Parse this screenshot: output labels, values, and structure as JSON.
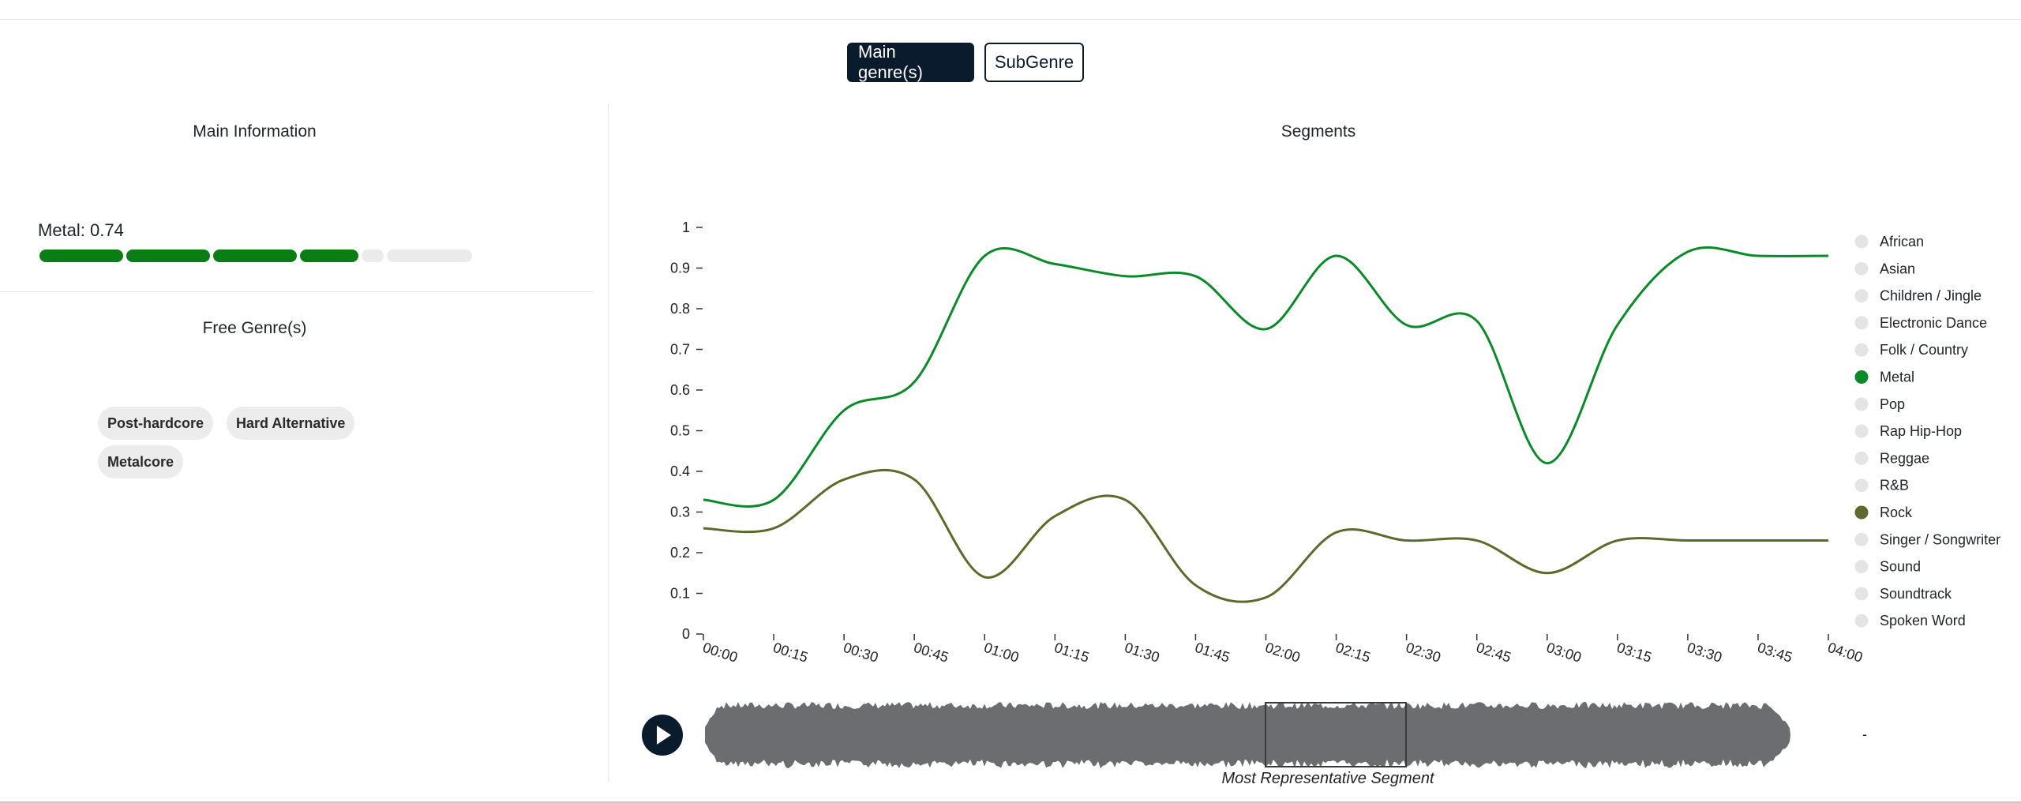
{
  "toggle": {
    "main_label": "Main genre(s)",
    "sub_label": "SubGenre",
    "active": "main"
  },
  "main_info": {
    "title": "Main Information",
    "metal_label": "Metal: 0.74",
    "metal_score": 0.74
  },
  "free_genres": {
    "title": "Free Genre(s)",
    "tags": [
      "Post-hardcore",
      "Hard Alternative",
      "Metalcore"
    ]
  },
  "segments": {
    "title": "Segments",
    "caption": "Most Representative Segment",
    "duration_marker": "-"
  },
  "colors": {
    "metal": "#0b8a2a",
    "rock": "#5b6b2c",
    "inactive": "#e4e4e4",
    "waveform": "#6b6d70",
    "bar_fill": "#0a7d14",
    "dark": "#0b1b2e"
  },
  "icons": {
    "play": "play-icon"
  },
  "chart_data": {
    "type": "line",
    "title": "Segments",
    "xlabel": "",
    "ylabel": "",
    "x": [
      "00:00",
      "00:15",
      "00:30",
      "00:45",
      "01:00",
      "01:15",
      "01:30",
      "01:45",
      "02:00",
      "02:15",
      "02:30",
      "02:45",
      "03:00",
      "03:15",
      "03:30",
      "03:45",
      "04:00"
    ],
    "ylim": [
      0,
      1
    ],
    "yticks": [
      "0",
      "0.1",
      "0.2",
      "0.3",
      "0.4",
      "0.5",
      "0.6",
      "0.7",
      "0.8",
      "0.9",
      "1"
    ],
    "series": [
      {
        "name": "Metal",
        "values": [
          0.33,
          0.33,
          0.55,
          0.62,
          0.93,
          0.91,
          0.88,
          0.88,
          0.75,
          0.93,
          0.76,
          0.77,
          0.42,
          0.76,
          0.94,
          0.93,
          0.93
        ]
      },
      {
        "name": "Rock",
        "values": [
          0.26,
          0.26,
          0.38,
          0.38,
          0.14,
          0.29,
          0.33,
          0.12,
          0.09,
          0.25,
          0.23,
          0.23,
          0.15,
          0.23,
          0.23,
          0.23,
          0.23
        ]
      }
    ],
    "legend": {
      "position": "right",
      "items": [
        "African",
        "Asian",
        "Children / Jingle",
        "Electronic Dance",
        "Folk / Country",
        "Metal",
        "Pop",
        "Rap Hip-Hop",
        "Reggae",
        "R&B",
        "Rock",
        "Singer / Songwriter",
        "Sound",
        "Soundtrack",
        "Spoken Word"
      ],
      "active": [
        "Metal",
        "Rock"
      ]
    },
    "grid": false
  }
}
